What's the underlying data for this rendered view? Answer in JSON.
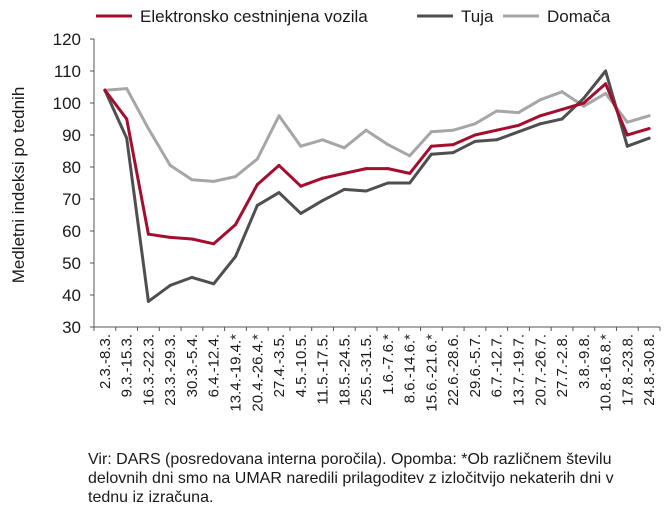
{
  "chart_data": {
    "type": "line",
    "title": "",
    "xlabel": "",
    "ylabel": "Medletni indeksi po tednih",
    "ylim": [
      30,
      120
    ],
    "yticks": [
      30,
      40,
      50,
      60,
      70,
      80,
      90,
      100,
      110,
      120
    ],
    "grid": false,
    "legend_position": "top",
    "categories": [
      "2.3.-8.3.",
      "9.3.-15.3.",
      "16.3.-22.3.",
      "23.3.-29.3.",
      "30.3.-5.4.",
      "6.4.-12.4.",
      "13.4.-19.4.*",
      "20.4.-26.4.*",
      "27.4.-3.5.",
      "4.5.-10.5.",
      "11.5.-17.5.",
      "18.5.-24.5.",
      "25.5.-31.5.",
      "1.6.-7.6.*",
      "8.6.-14.6.*",
      "15.6.-21.6.*",
      "22.6.-28.6.",
      "29.6.-5.7.",
      "6.7.-12.7.",
      "13.7.-19.7.",
      "20.7.-26.7.",
      "27.7.-2.8.",
      "3.8.-9.8.",
      "10.8.-16.8.*",
      "17.8.-23.8.",
      "24.8.-30.8."
    ],
    "series": [
      {
        "name": "Elektronsko cestninjena vozila",
        "color": "#a50d2e",
        "values": [
          104,
          95,
          59,
          58,
          57.5,
          56,
          62,
          74.5,
          80.5,
          74,
          76.5,
          78,
          79.5,
          79.5,
          78,
          86.5,
          87,
          90,
          91.5,
          93,
          96,
          98,
          100,
          106,
          90,
          92
        ]
      },
      {
        "name": "Tuja",
        "color": "#4f4f4f",
        "values": [
          104,
          89,
          38,
          43,
          45.5,
          43.5,
          52,
          68,
          72,
          65.5,
          69.5,
          73,
          72.5,
          75,
          75,
          84,
          84.5,
          88,
          88.5,
          91,
          93.5,
          95,
          101.5,
          110,
          86.5,
          89
        ]
      },
      {
        "name": "Domača",
        "color": "#a6a6a6",
        "values": [
          104,
          104.5,
          92,
          80.5,
          76,
          75.5,
          77,
          82.5,
          96,
          86.5,
          88.5,
          86,
          91.5,
          87,
          83.5,
          91,
          91.5,
          93.5,
          97.5,
          97,
          101,
          103.5,
          99,
          103,
          94,
          96
        ]
      }
    ]
  },
  "footer": {
    "note": "Vir: DARS (posredovana interna poročila). Opomba: *Ob različnem številu delovnih dni smo na UMAR naredili prilagoditev z izločitvijo nekaterih dni v tednu iz izračuna."
  }
}
